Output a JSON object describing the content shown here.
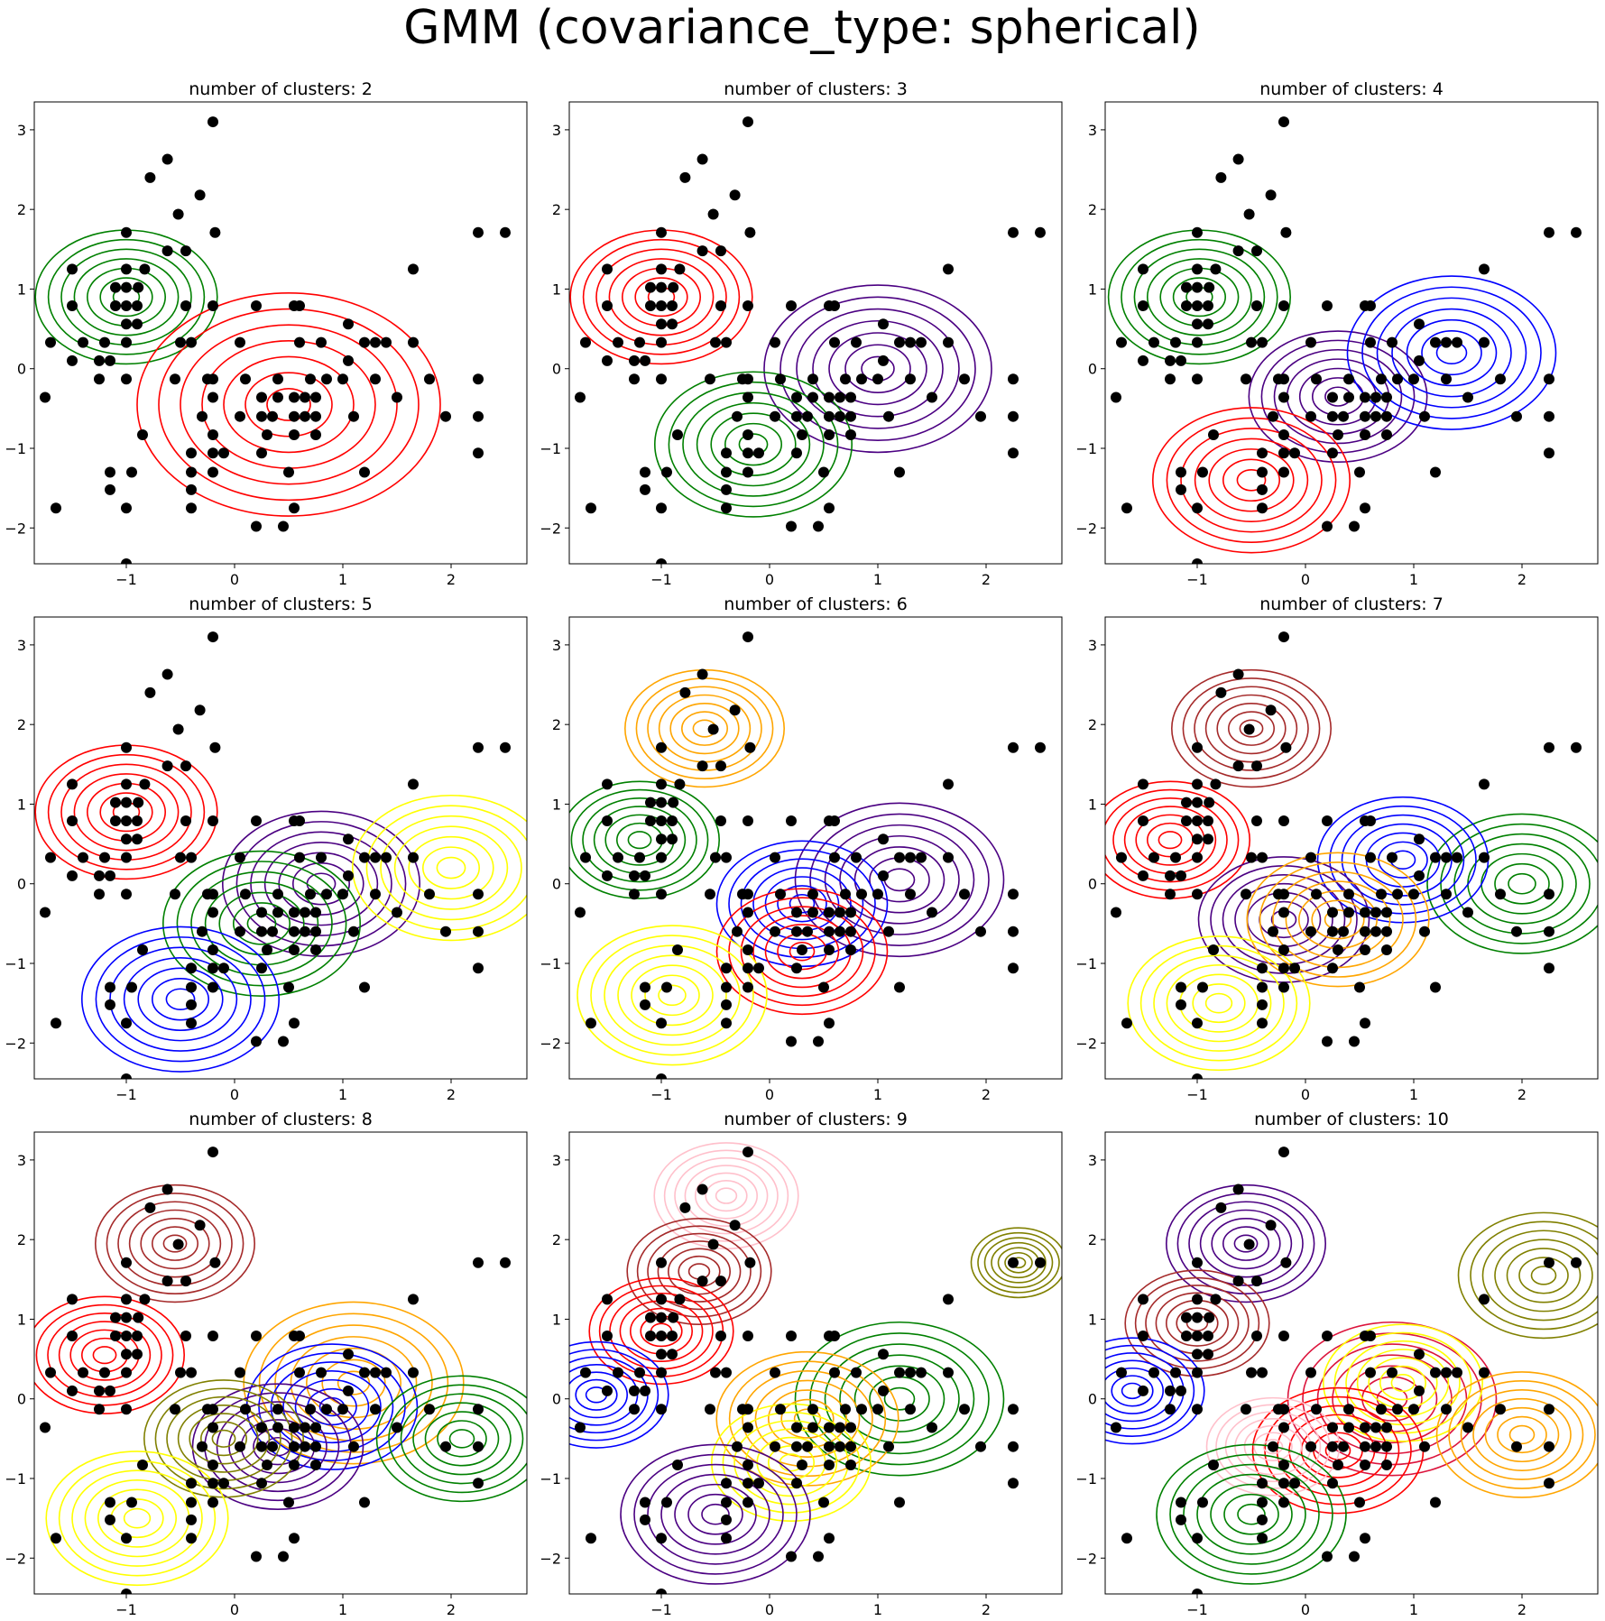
{
  "figure": {
    "title": "GMM (covariance_type: spherical)"
  },
  "points": [
    [
      -0.2,
      3.1
    ],
    [
      -0.62,
      2.63
    ],
    [
      -0.78,
      2.4
    ],
    [
      -0.32,
      2.18
    ],
    [
      -0.52,
      1.94
    ],
    [
      -0.18,
      1.71
    ],
    [
      -1.0,
      1.71
    ],
    [
      -0.62,
      1.48
    ],
    [
      -0.45,
      1.48
    ],
    [
      -1.0,
      1.25
    ],
    [
      -0.83,
      1.25
    ],
    [
      -1.5,
      1.25
    ],
    [
      -1.0,
      1.02
    ],
    [
      -1.1,
      1.02
    ],
    [
      -0.89,
      1.02
    ],
    [
      -1.1,
      0.79
    ],
    [
      -1.5,
      0.79
    ],
    [
      -1.0,
      0.79
    ],
    [
      -0.9,
      0.79
    ],
    [
      -0.45,
      0.79
    ],
    [
      -0.2,
      0.79
    ],
    [
      -1.0,
      0.56
    ],
    [
      -0.9,
      0.56
    ],
    [
      -1.7,
      0.33
    ],
    [
      -1.4,
      0.33
    ],
    [
      -1.2,
      0.33
    ],
    [
      -1.0,
      0.33
    ],
    [
      -0.5,
      0.33
    ],
    [
      -0.4,
      0.33
    ],
    [
      -1.5,
      0.1
    ],
    [
      -1.15,
      0.1
    ],
    [
      -1.25,
      0.1
    ],
    [
      -1.9,
      -0.13
    ],
    [
      -1.25,
      -0.13
    ],
    [
      -1.0,
      -0.13
    ],
    [
      -0.55,
      -0.13
    ],
    [
      -0.25,
      -0.13
    ],
    [
      -1.75,
      -0.36
    ],
    [
      2.25,
      1.71
    ],
    [
      2.5,
      1.71
    ],
    [
      1.65,
      1.25
    ],
    [
      0.2,
      0.79
    ],
    [
      0.55,
      0.79
    ],
    [
      0.6,
      0.79
    ],
    [
      0.05,
      0.33
    ],
    [
      0.6,
      0.33
    ],
    [
      0.8,
      0.33
    ],
    [
      1.05,
      0.56
    ],
    [
      1.3,
      0.33
    ],
    [
      1.4,
      0.33
    ],
    [
      1.2,
      0.33
    ],
    [
      1.65,
      0.33
    ],
    [
      1.05,
      0.1
    ],
    [
      -0.2,
      -0.13
    ],
    [
      0.1,
      -0.13
    ],
    [
      0.4,
      -0.13
    ],
    [
      0.7,
      -0.13
    ],
    [
      0.85,
      -0.13
    ],
    [
      1.0,
      -0.13
    ],
    [
      1.3,
      -0.13
    ],
    [
      1.8,
      -0.13
    ],
    [
      2.25,
      -0.13
    ],
    [
      -0.2,
      -0.36
    ],
    [
      0.25,
      -0.36
    ],
    [
      0.4,
      -0.36
    ],
    [
      0.55,
      -0.36
    ],
    [
      0.65,
      -0.36
    ],
    [
      0.75,
      -0.36
    ],
    [
      1.5,
      -0.36
    ],
    [
      -0.3,
      -0.6
    ],
    [
      0.05,
      -0.6
    ],
    [
      0.25,
      -0.6
    ],
    [
      0.35,
      -0.6
    ],
    [
      0.55,
      -0.6
    ],
    [
      0.65,
      -0.6
    ],
    [
      0.75,
      -0.6
    ],
    [
      1.1,
      -0.6
    ],
    [
      1.95,
      -0.6
    ],
    [
      2.25,
      -0.6
    ],
    [
      -0.85,
      -0.83
    ],
    [
      -0.2,
      -0.83
    ],
    [
      0.3,
      -0.83
    ],
    [
      0.55,
      -0.83
    ],
    [
      0.75,
      -0.83
    ],
    [
      -0.4,
      -1.06
    ],
    [
      -0.2,
      -1.06
    ],
    [
      -0.1,
      -1.06
    ],
    [
      0.25,
      -1.06
    ],
    [
      2.25,
      -1.06
    ],
    [
      -0.4,
      -1.3
    ],
    [
      -0.2,
      -1.3
    ],
    [
      0.5,
      -1.3
    ],
    [
      1.2,
      -1.3
    ],
    [
      -0.95,
      -1.3
    ],
    [
      -1.15,
      -1.3
    ],
    [
      -1.15,
      -1.52
    ],
    [
      -0.4,
      -1.52
    ],
    [
      -1.0,
      -1.75
    ],
    [
      -1.65,
      -1.75
    ],
    [
      -0.4,
      -1.75
    ],
    [
      0.55,
      -1.75
    ],
    [
      0.2,
      -1.98
    ],
    [
      0.45,
      -1.98
    ],
    [
      -1.0,
      -2.45
    ]
  ],
  "chart_data": [
    {
      "type": "scatter",
      "title": "number of clusters: 2",
      "xlim": [
        -1.85,
        2.7
      ],
      "ylim": [
        -2.45,
        3.35
      ],
      "xticks": [
        -1,
        0,
        1,
        2
      ],
      "yticks": [
        -2,
        -1,
        0,
        1,
        2,
        3
      ],
      "components": [
        {
          "color": "green",
          "mean": [
            -1.0,
            0.9
          ],
          "sigma": 0.48
        },
        {
          "color": "red",
          "mean": [
            0.5,
            -0.45
          ],
          "sigma": 0.8
        }
      ]
    },
    {
      "type": "scatter",
      "title": "number of clusters: 3",
      "xlim": [
        -1.85,
        2.7
      ],
      "ylim": [
        -2.45,
        3.35
      ],
      "xticks": [
        -1,
        0,
        1,
        2
      ],
      "yticks": [
        -2,
        -1,
        0,
        1,
        2,
        3
      ],
      "components": [
        {
          "color": "red",
          "mean": [
            -1.0,
            0.9
          ],
          "sigma": 0.48
        },
        {
          "color": "indigo",
          "mean": [
            1.0,
            0.0
          ],
          "sigma": 0.6
        },
        {
          "color": "green",
          "mean": [
            -0.15,
            -0.95
          ],
          "sigma": 0.52
        }
      ]
    },
    {
      "type": "scatter",
      "title": "number of clusters: 4",
      "xlim": [
        -1.85,
        2.7
      ],
      "ylim": [
        -2.45,
        3.35
      ],
      "xticks": [
        -1,
        0,
        1,
        2
      ],
      "yticks": [
        -2,
        -1,
        0,
        1,
        2,
        3
      ],
      "components": [
        {
          "color": "green",
          "mean": [
            -0.98,
            0.9
          ],
          "sigma": 0.48
        },
        {
          "color": "indigo",
          "mean": [
            0.3,
            -0.35
          ],
          "sigma": 0.47
        },
        {
          "color": "blue",
          "mean": [
            1.35,
            0.2
          ],
          "sigma": 0.55
        },
        {
          "color": "red",
          "mean": [
            -0.5,
            -1.4
          ],
          "sigma": 0.52
        }
      ]
    },
    {
      "type": "scatter",
      "title": "number of clusters: 5",
      "xlim": [
        -1.85,
        2.7
      ],
      "ylim": [
        -2.45,
        3.35
      ],
      "xticks": [
        -1,
        0,
        1,
        2
      ],
      "yticks": [
        -2,
        -1,
        0,
        1,
        2,
        3
      ],
      "components": [
        {
          "color": "red",
          "mean": [
            -1.0,
            0.9
          ],
          "sigma": 0.48
        },
        {
          "color": "indigo",
          "mean": [
            0.8,
            0.0
          ],
          "sigma": 0.52
        },
        {
          "color": "green",
          "mean": [
            0.25,
            -0.5
          ],
          "sigma": 0.52
        },
        {
          "color": "yellow",
          "mean": [
            2.0,
            0.2
          ],
          "sigma": 0.52
        },
        {
          "color": "blue",
          "mean": [
            -0.5,
            -1.45
          ],
          "sigma": 0.52
        }
      ]
    },
    {
      "type": "scatter",
      "title": "number of clusters: 6",
      "xlim": [
        -1.85,
        2.7
      ],
      "ylim": [
        -2.45,
        3.35
      ],
      "xticks": [
        -1,
        0,
        1,
        2
      ],
      "yticks": [
        -2,
        -1,
        0,
        1,
        2,
        3
      ],
      "components": [
        {
          "color": "orange",
          "mean": [
            -0.6,
            1.95
          ],
          "sigma": 0.42
        },
        {
          "color": "green",
          "mean": [
            -1.2,
            0.55
          ],
          "sigma": 0.42
        },
        {
          "color": "indigo",
          "mean": [
            1.2,
            0.05
          ],
          "sigma": 0.55
        },
        {
          "color": "blue",
          "mean": [
            0.3,
            -0.25
          ],
          "sigma": 0.45
        },
        {
          "color": "red",
          "mean": [
            0.3,
            -0.85
          ],
          "sigma": 0.45
        },
        {
          "color": "yellow",
          "mean": [
            -0.9,
            -1.4
          ],
          "sigma": 0.5
        }
      ]
    },
    {
      "type": "scatter",
      "title": "number of clusters: 7",
      "xlim": [
        -1.85,
        2.7
      ],
      "ylim": [
        -2.45,
        3.35
      ],
      "xticks": [
        -1,
        0,
        1,
        2
      ],
      "yticks": [
        -2,
        -1,
        0,
        1,
        2,
        3
      ],
      "components": [
        {
          "color": "brown",
          "mean": [
            -0.5,
            1.95
          ],
          "sigma": 0.42
        },
        {
          "color": "red",
          "mean": [
            -1.25,
            0.55
          ],
          "sigma": 0.42
        },
        {
          "color": "green",
          "mean": [
            2.0,
            0.0
          ],
          "sigma": 0.5
        },
        {
          "color": "blue",
          "mean": [
            0.9,
            0.3
          ],
          "sigma": 0.45
        },
        {
          "color": "indigo",
          "mean": [
            -0.2,
            -0.45
          ],
          "sigma": 0.45
        },
        {
          "color": "orange",
          "mean": [
            0.3,
            -0.45
          ],
          "sigma": 0.48
        },
        {
          "color": "yellow",
          "mean": [
            -0.8,
            -1.5
          ],
          "sigma": 0.48
        }
      ]
    },
    {
      "type": "scatter",
      "title": "number of clusters: 8",
      "xlim": [
        -1.85,
        2.7
      ],
      "ylim": [
        -2.45,
        3.35
      ],
      "xticks": [
        -1,
        0,
        1,
        2
      ],
      "yticks": [
        -2,
        -1,
        0,
        1,
        2,
        3
      ],
      "components": [
        {
          "color": "brown",
          "mean": [
            -0.55,
            1.95
          ],
          "sigma": 0.42
        },
        {
          "color": "red",
          "mean": [
            -1.2,
            0.55
          ],
          "sigma": 0.42
        },
        {
          "color": "orange",
          "mean": [
            1.1,
            0.2
          ],
          "sigma": 0.58
        },
        {
          "color": "blue",
          "mean": [
            0.9,
            -0.1
          ],
          "sigma": 0.45
        },
        {
          "color": "indigo",
          "mean": [
            0.4,
            -0.6
          ],
          "sigma": 0.45
        },
        {
          "color": "olive",
          "mean": [
            -0.1,
            -0.5
          ],
          "sigma": 0.42
        },
        {
          "color": "green",
          "mean": [
            2.1,
            -0.5
          ],
          "sigma": 0.45
        },
        {
          "color": "yellow",
          "mean": [
            -0.9,
            -1.5
          ],
          "sigma": 0.48
        }
      ]
    },
    {
      "type": "scatter",
      "title": "number of clusters: 9",
      "xlim": [
        -1.85,
        2.7
      ],
      "ylim": [
        -2.45,
        3.35
      ],
      "xticks": [
        -1,
        0,
        1,
        2
      ],
      "yticks": [
        -2,
        -1,
        0,
        1,
        2,
        3
      ],
      "components": [
        {
          "color": "pink",
          "mean": [
            -0.4,
            2.55
          ],
          "sigma": 0.38
        },
        {
          "color": "brown",
          "mean": [
            -0.65,
            1.6
          ],
          "sigma": 0.38
        },
        {
          "color": "red",
          "mean": [
            -1.0,
            0.85
          ],
          "sigma": 0.38
        },
        {
          "color": "olive",
          "mean": [
            2.3,
            1.71
          ],
          "sigma": 0.25
        },
        {
          "color": "green",
          "mean": [
            1.2,
            0.0
          ],
          "sigma": 0.55
        },
        {
          "color": "orange",
          "mean": [
            0.35,
            -0.25
          ],
          "sigma": 0.48
        },
        {
          "color": "yellow",
          "mean": [
            0.2,
            -0.8
          ],
          "sigma": 0.42
        },
        {
          "color": "blue",
          "mean": [
            -1.6,
            0.05
          ],
          "sigma": 0.38
        },
        {
          "color": "indigo",
          "mean": [
            -0.5,
            -1.45
          ],
          "sigma": 0.5
        }
      ]
    },
    {
      "type": "scatter",
      "title": "number of clusters: 10",
      "xlim": [
        -1.85,
        2.7
      ],
      "ylim": [
        -2.45,
        3.35
      ],
      "xticks": [
        -1,
        0,
        1,
        2
      ],
      "yticks": [
        -2,
        -1,
        0,
        1,
        2,
        3
      ],
      "components": [
        {
          "color": "indigo",
          "mean": [
            -0.55,
            1.95
          ],
          "sigma": 0.42
        },
        {
          "color": "brown",
          "mean": [
            -1.0,
            0.95
          ],
          "sigma": 0.38
        },
        {
          "color": "olive",
          "mean": [
            2.2,
            1.55
          ],
          "sigma": 0.45
        },
        {
          "color": "blue",
          "mean": [
            -1.6,
            0.1
          ],
          "sigma": 0.38
        },
        {
          "color": "crimson",
          "mean": [
            0.8,
            0.0
          ],
          "sigma": 0.55
        },
        {
          "color": "yellow",
          "mean": [
            0.9,
            0.2
          ],
          "sigma": 0.42
        },
        {
          "color": "red",
          "mean": [
            0.3,
            -0.65
          ],
          "sigma": 0.45
        },
        {
          "color": "pink",
          "mean": [
            -0.3,
            -0.6
          ],
          "sigma": 0.35
        },
        {
          "color": "orange",
          "mean": [
            2.0,
            -0.45
          ],
          "sigma": 0.45
        },
        {
          "color": "green",
          "mean": [
            -0.5,
            -1.45
          ],
          "sigma": 0.5
        }
      ]
    }
  ]
}
